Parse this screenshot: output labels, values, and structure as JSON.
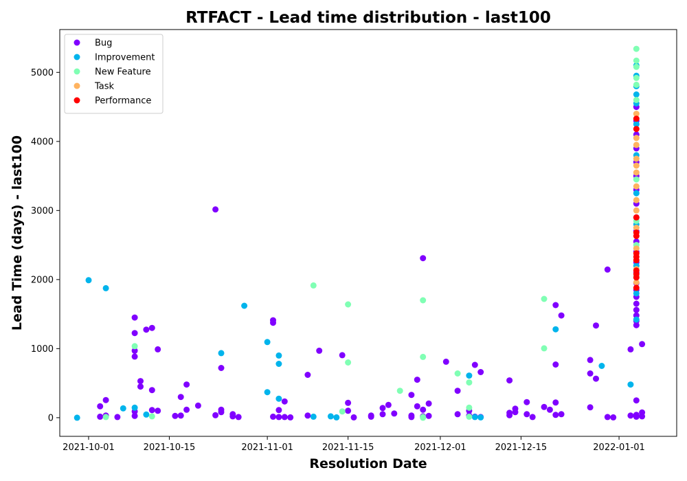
{
  "chart_data": {
    "type": "scatter",
    "title": "RTFACT - Lead time distribution - last100",
    "xlabel": "Resolution Date",
    "ylabel": "Lead Time (days) - last100",
    "x_type": "date",
    "xlim": [
      "2021-09-26",
      "2022-01-11"
    ],
    "ylim": [
      -270,
      5620
    ],
    "x_ticks": [
      "2021-10-01",
      "2021-10-15",
      "2021-11-01",
      "2021-11-15",
      "2021-12-01",
      "2021-12-15",
      "2022-01-01"
    ],
    "y_ticks": [
      0,
      1000,
      2000,
      3000,
      4000,
      5000
    ],
    "legend_position": "upper-left",
    "grid": false,
    "series": [
      {
        "name": "Bug",
        "color": "#8000ff",
        "points": [
          [
            "2021-10-03",
            15
          ],
          [
            "2021-10-03",
            165
          ],
          [
            "2021-10-04",
            30
          ],
          [
            "2021-10-04",
            255
          ],
          [
            "2021-10-06",
            10
          ],
          [
            "2021-10-09",
            25
          ],
          [
            "2021-10-09",
            90
          ],
          [
            "2021-10-09",
            970
          ],
          [
            "2021-10-09",
            885
          ],
          [
            "2021-10-09",
            1225
          ],
          [
            "2021-10-09",
            1450
          ],
          [
            "2021-10-10",
            530
          ],
          [
            "2021-10-10",
            450
          ],
          [
            "2021-10-11",
            1275
          ],
          [
            "2021-10-12",
            400
          ],
          [
            "2021-10-12",
            1300
          ],
          [
            "2021-10-12",
            110
          ],
          [
            "2021-10-13",
            100
          ],
          [
            "2021-10-13",
            990
          ],
          [
            "2021-10-16",
            25
          ],
          [
            "2021-10-17",
            30
          ],
          [
            "2021-10-17",
            300
          ],
          [
            "2021-10-18",
            480
          ],
          [
            "2021-10-18",
            115
          ],
          [
            "2021-10-20",
            175
          ],
          [
            "2021-10-23",
            3015
          ],
          [
            "2021-10-23",
            35
          ],
          [
            "2021-10-24",
            720
          ],
          [
            "2021-10-24",
            80
          ],
          [
            "2021-10-24",
            115
          ],
          [
            "2021-10-26",
            20
          ],
          [
            "2021-10-26",
            50
          ],
          [
            "2021-10-27",
            10
          ],
          [
            "2021-11-02",
            15
          ],
          [
            "2021-11-02",
            1410
          ],
          [
            "2021-11-02",
            1375
          ],
          [
            "2021-11-03",
            110
          ],
          [
            "2021-11-03",
            10
          ],
          [
            "2021-11-04",
            235
          ],
          [
            "2021-11-04",
            10
          ],
          [
            "2021-11-05",
            5
          ],
          [
            "2021-11-08",
            620
          ],
          [
            "2021-11-08",
            30
          ],
          [
            "2021-11-10",
            970
          ],
          [
            "2021-11-14",
            905
          ],
          [
            "2021-11-15",
            215
          ],
          [
            "2021-11-15",
            100
          ],
          [
            "2021-11-16",
            5
          ],
          [
            "2021-11-19",
            30
          ],
          [
            "2021-11-19",
            15
          ],
          [
            "2021-11-21",
            140
          ],
          [
            "2021-11-21",
            50
          ],
          [
            "2021-11-22",
            185
          ],
          [
            "2021-11-23",
            60
          ],
          [
            "2021-11-26",
            330
          ],
          [
            "2021-11-26",
            30
          ],
          [
            "2021-11-26",
            10
          ],
          [
            "2021-11-27",
            165
          ],
          [
            "2021-11-27",
            550
          ],
          [
            "2021-11-28",
            115
          ],
          [
            "2021-11-28",
            2310
          ],
          [
            "2021-11-28",
            20
          ],
          [
            "2021-11-29",
            205
          ],
          [
            "2021-11-29",
            25
          ],
          [
            "2021-12-02",
            810
          ],
          [
            "2021-12-04",
            390
          ],
          [
            "2021-12-04",
            50
          ],
          [
            "2021-12-06",
            100
          ],
          [
            "2021-12-06",
            30
          ],
          [
            "2021-12-07",
            765
          ],
          [
            "2021-12-07",
            15
          ],
          [
            "2021-12-08",
            660
          ],
          [
            "2021-12-08",
            10
          ],
          [
            "2021-12-13",
            540
          ],
          [
            "2021-12-13",
            70
          ],
          [
            "2021-12-13",
            35
          ],
          [
            "2021-12-14",
            130
          ],
          [
            "2021-12-14",
            80
          ],
          [
            "2021-12-16",
            225
          ],
          [
            "2021-12-16",
            50
          ],
          [
            "2021-12-17",
            10
          ],
          [
            "2021-12-19",
            155
          ],
          [
            "2021-12-20",
            115
          ],
          [
            "2021-12-21",
            1630
          ],
          [
            "2021-12-21",
            770
          ],
          [
            "2021-12-21",
            220
          ],
          [
            "2021-12-21",
            40
          ],
          [
            "2021-12-22",
            1480
          ],
          [
            "2021-12-22",
            50
          ],
          [
            "2021-12-27",
            835
          ],
          [
            "2021-12-27",
            640
          ],
          [
            "2021-12-27",
            150
          ],
          [
            "2021-12-28",
            1335
          ],
          [
            "2021-12-28",
            565
          ],
          [
            "2021-12-30",
            2145
          ],
          [
            "2021-12-30",
            10
          ],
          [
            "2021-12-31",
            5
          ],
          [
            "2022-01-03",
            990
          ],
          [
            "2022-01-03",
            30
          ],
          [
            "2022-01-04",
            1340
          ],
          [
            "2022-01-04",
            1400
          ],
          [
            "2022-01-04",
            1480
          ],
          [
            "2022-01-04",
            1560
          ],
          [
            "2022-01-04",
            1650
          ],
          [
            "2022-01-04",
            1750
          ],
          [
            "2022-01-04",
            1850
          ],
          [
            "2022-01-04",
            1950
          ],
          [
            "2022-01-04",
            2100
          ],
          [
            "2022-01-04",
            2250
          ],
          [
            "2022-01-04",
            2400
          ],
          [
            "2022-01-04",
            2550
          ],
          [
            "2022-01-04",
            2700
          ],
          [
            "2022-01-04",
            2900
          ],
          [
            "2022-01-04",
            3100
          ],
          [
            "2022-01-04",
            3300
          ],
          [
            "2022-01-04",
            3500
          ],
          [
            "2022-01-04",
            3700
          ],
          [
            "2022-01-04",
            3900
          ],
          [
            "2022-01-04",
            4100
          ],
          [
            "2022-01-04",
            4300
          ],
          [
            "2022-01-04",
            4500
          ],
          [
            "2022-01-04",
            250
          ],
          [
            "2022-01-04",
            40
          ],
          [
            "2022-01-04",
            15
          ],
          [
            "2022-01-05",
            1065
          ],
          [
            "2022-01-05",
            75
          ],
          [
            "2022-01-05",
            20
          ]
        ]
      },
      {
        "name": "Improvement",
        "color": "#00b4ec",
        "points": [
          [
            "2021-09-29",
            0
          ],
          [
            "2021-10-01",
            1990
          ],
          [
            "2021-10-04",
            1875
          ],
          [
            "2021-10-07",
            135
          ],
          [
            "2021-10-09",
            145
          ],
          [
            "2021-10-11",
            45
          ],
          [
            "2021-10-24",
            935
          ],
          [
            "2021-10-28",
            1620
          ],
          [
            "2021-11-01",
            1095
          ],
          [
            "2021-11-01",
            370
          ],
          [
            "2021-11-03",
            900
          ],
          [
            "2021-11-03",
            780
          ],
          [
            "2021-11-03",
            275
          ],
          [
            "2021-11-09",
            15
          ],
          [
            "2021-11-12",
            20
          ],
          [
            "2021-11-13",
            5
          ],
          [
            "2021-12-06",
            610
          ],
          [
            "2021-12-07",
            10
          ],
          [
            "2021-12-08",
            5
          ],
          [
            "2021-12-21",
            1280
          ],
          [
            "2021-12-29",
            750
          ],
          [
            "2022-01-03",
            480
          ],
          [
            "2022-01-04",
            1420
          ],
          [
            "2022-01-04",
            1800
          ],
          [
            "2022-01-04",
            2200
          ],
          [
            "2022-01-04",
            2800
          ],
          [
            "2022-01-04",
            3250
          ],
          [
            "2022-01-04",
            3800
          ],
          [
            "2022-01-04",
            4250
          ],
          [
            "2022-01-04",
            4550
          ],
          [
            "2022-01-04",
            4680
          ],
          [
            "2022-01-04",
            4800
          ],
          [
            "2022-01-04",
            4950
          ],
          [
            "2022-01-04",
            5100
          ]
        ]
      },
      {
        "name": "New Feature",
        "color": "#80ffb4",
        "points": [
          [
            "2021-10-04",
            10
          ],
          [
            "2021-10-09",
            1035
          ],
          [
            "2021-10-12",
            20
          ],
          [
            "2021-11-09",
            1915
          ],
          [
            "2021-11-14",
            90
          ],
          [
            "2021-11-15",
            1640
          ],
          [
            "2021-11-15",
            800
          ],
          [
            "2021-11-24",
            390
          ],
          [
            "2021-11-28",
            1700
          ],
          [
            "2021-11-28",
            880
          ],
          [
            "2021-11-28",
            10
          ],
          [
            "2021-11-28",
            0
          ],
          [
            "2021-12-04",
            640
          ],
          [
            "2021-12-06",
            510
          ],
          [
            "2021-12-06",
            145
          ],
          [
            "2021-12-06",
            15
          ],
          [
            "2021-12-19",
            1720
          ],
          [
            "2021-12-19",
            1005
          ],
          [
            "2022-01-04",
            2050
          ],
          [
            "2022-01-04",
            2500
          ],
          [
            "2022-01-04",
            2850
          ],
          [
            "2022-01-04",
            3450
          ],
          [
            "2022-01-04",
            4600
          ],
          [
            "2022-01-04",
            4820
          ],
          [
            "2022-01-04",
            4920
          ],
          [
            "2022-01-04",
            5080
          ],
          [
            "2022-01-04",
            5170
          ],
          [
            "2022-01-04",
            5340
          ]
        ]
      },
      {
        "name": "Task",
        "color": "#ffb360",
        "points": [
          [
            "2022-01-04",
            1960
          ],
          [
            "2022-01-04",
            2150
          ],
          [
            "2022-01-04",
            2450
          ],
          [
            "2022-01-04",
            2750
          ],
          [
            "2022-01-04",
            3000
          ],
          [
            "2022-01-04",
            3150
          ],
          [
            "2022-01-04",
            3350
          ],
          [
            "2022-01-04",
            3550
          ],
          [
            "2022-01-04",
            3650
          ],
          [
            "2022-01-04",
            3750
          ],
          [
            "2022-01-04",
            3950
          ],
          [
            "2022-01-04",
            4050
          ],
          [
            "2022-01-04",
            4400
          ]
        ]
      },
      {
        "name": "Performance",
        "color": "#ff0000",
        "points": [
          [
            "2022-01-04",
            1880
          ],
          [
            "2022-01-04",
            2030
          ],
          [
            "2022-01-04",
            2080
          ],
          [
            "2022-01-04",
            2130
          ],
          [
            "2022-01-04",
            2280
          ],
          [
            "2022-01-04",
            2330
          ],
          [
            "2022-01-04",
            2380
          ],
          [
            "2022-01-04",
            2630
          ],
          [
            "2022-01-04",
            2680
          ],
          [
            "2022-01-04",
            2900
          ],
          [
            "2022-01-04",
            4180
          ],
          [
            "2022-01-04",
            4330
          ]
        ]
      }
    ]
  }
}
